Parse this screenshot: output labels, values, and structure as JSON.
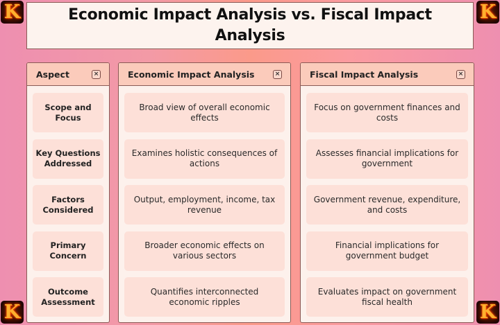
{
  "title": "Economic Impact Analysis vs. Fiscal Impact Analysis",
  "logo": {
    "glyph": "K",
    "icon": "flaming-k-logo"
  },
  "columns": [
    {
      "header": "Aspect",
      "close_icon": "×",
      "cells": [
        "Scope and Focus",
        "Key Questions Addressed",
        "Factors Considered",
        "Primary Concern",
        "Outcome Assessment"
      ]
    },
    {
      "header": "Economic Impact Analysis",
      "close_icon": "×",
      "cells": [
        "Broad view of overall economic effects",
        "Examines holistic consequences of actions",
        "Output, employment, income, tax revenue",
        "Broader economic effects on various sectors",
        "Quantifies interconnected economic ripples"
      ]
    },
    {
      "header": "Fiscal Impact Analysis",
      "close_icon": "×",
      "cells": [
        "Focus on government finances and costs",
        "Assesses financial implications for government",
        "Government revenue, expenditure, and costs",
        "Financial implications for government budget",
        "Evaluates impact on government fiscal health"
      ]
    }
  ],
  "colors": {
    "background_left": "#ee8fb0",
    "background_center": "#fb9a8a",
    "panel_header": "#fbcbbb",
    "panel_body": "#fdf1ec",
    "cell": "#fde0d8",
    "border": "#8a5a55"
  }
}
